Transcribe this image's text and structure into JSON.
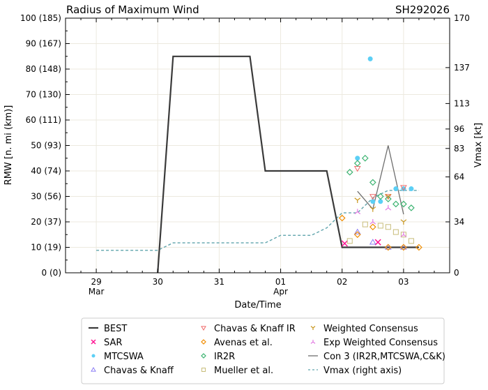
{
  "chart_data": {
    "type": "line",
    "title": "Radius of Maximum Wind",
    "id_label": "SH292026",
    "xlabel": "Date/Time",
    "ylabel": "RMW [n. mi (km)]",
    "y2label": "Vmax [kt]",
    "xlim": [
      "2026-03-28T12:00",
      "2026-04-03T18:00"
    ],
    "ylim": [
      0,
      100
    ],
    "y2lim": [
      0,
      170
    ],
    "grid": true,
    "legend_position": "bottom",
    "x_ticks": [
      {
        "t": "2026-03-29T00:00",
        "label": "29",
        "sub": "Mar"
      },
      {
        "t": "2026-03-30T00:00",
        "label": "30",
        "sub": ""
      },
      {
        "t": "2026-03-31T00:00",
        "label": "31",
        "sub": ""
      },
      {
        "t": "2026-04-01T00:00",
        "label": "01",
        "sub": "Apr"
      },
      {
        "t": "2026-04-02T00:00",
        "label": "02",
        "sub": ""
      },
      {
        "t": "2026-04-03T00:00",
        "label": "03",
        "sub": ""
      }
    ],
    "y_ticks": [
      {
        "v": 0,
        "label": "0 (0)"
      },
      {
        "v": 10,
        "label": "10 (19)"
      },
      {
        "v": 20,
        "label": "20 (37)"
      },
      {
        "v": 30,
        "label": "30 (56)"
      },
      {
        "v": 40,
        "label": "40 (74)"
      },
      {
        "v": 50,
        "label": "50 (93)"
      },
      {
        "v": 60,
        "label": "60 (111)"
      },
      {
        "v": 70,
        "label": "70 (130)"
      },
      {
        "v": 80,
        "label": "80 (148)"
      },
      {
        "v": 90,
        "label": "90 (167)"
      },
      {
        "v": 100,
        "label": "100 (185)"
      }
    ],
    "y2_ticks": [
      "0",
      "34",
      "64",
      "83",
      "96",
      "113",
      "137",
      "170"
    ],
    "series": [
      {
        "name": "BEST",
        "kind": "line",
        "color": "#3a3a3a",
        "points": [
          [
            "2026-03-30T00:00",
            0
          ],
          [
            "2026-03-30T06:00",
            85
          ],
          [
            "2026-03-31T12:00",
            85
          ],
          [
            "2026-03-31T18:00",
            40
          ],
          [
            "2026-04-01T18:00",
            40
          ],
          [
            "2026-04-02T00:00",
            10
          ],
          [
            "2026-04-03T06:00",
            10
          ]
        ]
      },
      {
        "name": "SAR",
        "kind": "marker",
        "marker": "x",
        "color": "#ff1493",
        "points": [
          [
            "2026-04-02T01:00",
            11.5
          ],
          [
            "2026-04-02T14:00",
            12
          ]
        ]
      },
      {
        "name": "MTCSWA",
        "kind": "marker",
        "marker": "dot",
        "color": "#5ccff5",
        "points": [
          [
            "2026-04-02T06:00",
            45
          ],
          [
            "2026-04-02T11:00",
            84
          ],
          [
            "2026-04-02T12:00",
            28
          ],
          [
            "2026-04-02T15:00",
            28
          ],
          [
            "2026-04-02T21:00",
            33
          ],
          [
            "2026-04-03T00:00",
            33
          ],
          [
            "2026-04-03T03:00",
            33
          ]
        ]
      },
      {
        "name": "Chavas & Knaff",
        "kind": "marker",
        "marker": "tri-up",
        "color": "#8a7cf5",
        "points": [
          [
            "2026-04-02T06:00",
            16
          ],
          [
            "2026-04-02T12:00",
            12
          ],
          [
            "2026-04-02T18:00",
            10
          ],
          [
            "2026-04-03T00:00",
            10
          ]
        ]
      },
      {
        "name": "Chavas & Knaff IR",
        "kind": "marker",
        "marker": "tri-down",
        "color": "#f06a6a",
        "points": [
          [
            "2026-04-02T06:00",
            41
          ],
          [
            "2026-04-02T12:00",
            30
          ],
          [
            "2026-04-02T18:00",
            30
          ],
          [
            "2026-04-03T00:00",
            33.5
          ]
        ]
      },
      {
        "name": "Avenas et al.",
        "kind": "marker",
        "marker": "diamond",
        "color": "#f08c00",
        "points": [
          [
            "2026-04-02T00:00",
            21.5
          ],
          [
            "2026-04-02T06:00",
            15
          ],
          [
            "2026-04-02T12:00",
            18
          ],
          [
            "2026-04-02T18:00",
            10
          ],
          [
            "2026-04-03T00:00",
            10
          ],
          [
            "2026-04-03T06:00",
            10
          ]
        ]
      },
      {
        "name": "IR2R",
        "kind": "marker",
        "marker": "diamond",
        "color": "#3cb371",
        "points": [
          [
            "2026-04-02T03:00",
            39.5
          ],
          [
            "2026-04-02T06:00",
            43
          ],
          [
            "2026-04-02T09:00",
            45
          ],
          [
            "2026-04-02T12:00",
            35.5
          ],
          [
            "2026-04-02T15:00",
            30
          ],
          [
            "2026-04-02T18:00",
            29
          ],
          [
            "2026-04-02T21:00",
            27
          ],
          [
            "2026-04-03T00:00",
            27
          ],
          [
            "2026-04-03T03:00",
            25.5
          ]
        ]
      },
      {
        "name": "Mueller et al.",
        "kind": "marker",
        "marker": "square",
        "color": "#c8bd7a",
        "points": [
          [
            "2026-04-02T03:00",
            12.5
          ],
          [
            "2026-04-02T09:00",
            19
          ],
          [
            "2026-04-02T15:00",
            18.5
          ],
          [
            "2026-04-02T18:00",
            18
          ],
          [
            "2026-04-02T21:00",
            16
          ],
          [
            "2026-04-03T00:00",
            15
          ],
          [
            "2026-04-03T03:00",
            12.5
          ]
        ]
      },
      {
        "name": "Weighted Consensus",
        "kind": "marker",
        "marker": "y",
        "color": "#c8961e",
        "points": [
          [
            "2026-04-02T06:00",
            28.5
          ],
          [
            "2026-04-02T12:00",
            25
          ],
          [
            "2026-04-02T18:00",
            30
          ],
          [
            "2026-04-03T00:00",
            20
          ]
        ]
      },
      {
        "name": "Exp Weighted Consensus",
        "kind": "marker",
        "marker": "y-inv",
        "color": "#e27be2",
        "points": [
          [
            "2026-04-02T06:00",
            24
          ],
          [
            "2026-04-02T12:00",
            20
          ],
          [
            "2026-04-02T18:00",
            25.5
          ],
          [
            "2026-04-03T00:00",
            15
          ]
        ]
      },
      {
        "name": "Con 3 (IR2R,MTCSWA,C&K)",
        "kind": "line",
        "color": "#6e6e6e",
        "points": [
          [
            "2026-04-02T06:00",
            32
          ],
          [
            "2026-04-02T12:00",
            25
          ],
          [
            "2026-04-02T18:00",
            50
          ],
          [
            "2026-04-03T00:00",
            23
          ]
        ]
      },
      {
        "name": "Vmax (right axis)",
        "kind": "dashed",
        "axis": "right",
        "color": "#5fa4ac",
        "points": [
          [
            "2026-03-29T00:00",
            15
          ],
          [
            "2026-03-30T00:00",
            15
          ],
          [
            "2026-03-30T06:00",
            20
          ],
          [
            "2026-03-31T18:00",
            20
          ],
          [
            "2026-04-01T00:00",
            25
          ],
          [
            "2026-04-01T12:00",
            25
          ],
          [
            "2026-04-01T18:00",
            30
          ],
          [
            "2026-04-02T00:00",
            40
          ],
          [
            "2026-04-02T06:00",
            40
          ],
          [
            "2026-04-02T12:00",
            50
          ],
          [
            "2026-04-02T18:00",
            55
          ],
          [
            "2026-04-03T06:00",
            55
          ]
        ]
      }
    ]
  }
}
